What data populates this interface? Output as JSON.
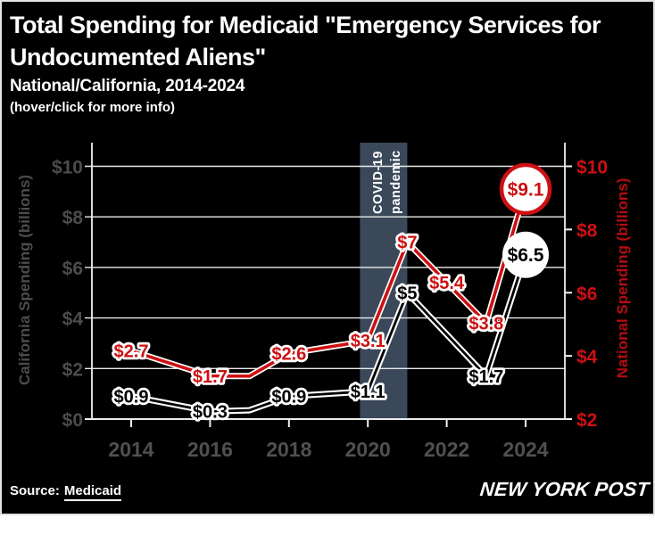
{
  "header": {
    "title": "Total Spending for Medicaid \"Emergency Services for Undocumented Aliens\"",
    "subtitle": "National/California, 2014-2024",
    "note": "(hover/click for more info)"
  },
  "footer": {
    "source_label": "Source:",
    "source_link": "Medicaid",
    "brand": "NEW YORK POST"
  },
  "colors": {
    "background": "#000000",
    "accent_red": "#cc1013",
    "dark_red_axis": "#b30d10",
    "band": "#3b4859",
    "grid": "#ebebeb",
    "axis_text_gray": "#4c4c4c",
    "year_text_gray": "#505050",
    "text_white": "#ffffff",
    "text_black": "#000000"
  },
  "chart_data": {
    "type": "line",
    "title": "Total Spending for Medicaid \"Emergency Services for Undocumented Aliens\"",
    "x_ticks": [
      2014,
      2016,
      2018,
      2020,
      2022,
      2024
    ],
    "x_tick_labels": [
      "2014",
      "2016",
      "2018",
      "2020",
      "2022",
      "2024"
    ],
    "left_axis": {
      "title": "California Spending (billions)",
      "range": [
        0,
        10
      ],
      "ticks": [
        0,
        2,
        4,
        6,
        8,
        10
      ],
      "tick_labels": [
        "$0",
        "$2",
        "$4",
        "$6",
        "$8",
        "$10"
      ]
    },
    "right_axis": {
      "title": "National Spending (billions)",
      "range": [
        2,
        10
      ],
      "ticks": [
        2,
        4,
        6,
        8,
        10
      ],
      "tick_labels": [
        "$2",
        "$4",
        "$6",
        "$8",
        "$10"
      ]
    },
    "band": {
      "label_line1": "COVID-19",
      "label_line2": "pandemic",
      "from_year": 2019.8,
      "to_year": 2021.0
    },
    "grid": true,
    "series": [
      {
        "name": "National Spending",
        "style": {
          "line": "#cc1013",
          "casing": "#ffffff",
          "label": "#cc1013",
          "core_width": 3.6
        },
        "points": [
          {
            "year": 2014,
            "value": 2.7,
            "label": "$2.7"
          },
          {
            "year": 2016,
            "value": 1.7,
            "label": "$1.7"
          },
          {
            "year": 2017,
            "value": 1.7
          },
          {
            "year": 2018,
            "value": 2.6,
            "label": "$2.6"
          },
          {
            "year": 2020,
            "value": 3.1,
            "label": "$3.1"
          },
          {
            "year": 2021,
            "value": 7,
            "label": "$7"
          },
          {
            "year": 2022,
            "value": 5.4,
            "label": "$5.4"
          },
          {
            "year": 2023,
            "value": 3.8,
            "label": "$3.8"
          },
          {
            "year": 2024,
            "value": 9.1,
            "label": "$9.1",
            "endpoint_circle": true
          }
        ]
      },
      {
        "name": "California Spending",
        "style": {
          "line": "#000000",
          "casing": "#ffffff",
          "label": "#000000",
          "core_width": 2.8
        },
        "points": [
          {
            "year": 2014,
            "value": 0.9,
            "label": "$0.9"
          },
          {
            "year": 2016,
            "value": 0.3,
            "label": "$0.3"
          },
          {
            "year": 2017,
            "value": 0.35
          },
          {
            "year": 2018,
            "value": 0.9,
            "label": "$0.9"
          },
          {
            "year": 2020,
            "value": 1.1,
            "label": "$1.1"
          },
          {
            "year": 2021,
            "value": 5,
            "label": "$5"
          },
          {
            "year": 2023,
            "value": 1.7,
            "label": "$1.7"
          },
          {
            "year": 2024,
            "value": 6.5,
            "label": "$6.5",
            "endpoint_circle": true
          }
        ]
      }
    ]
  }
}
